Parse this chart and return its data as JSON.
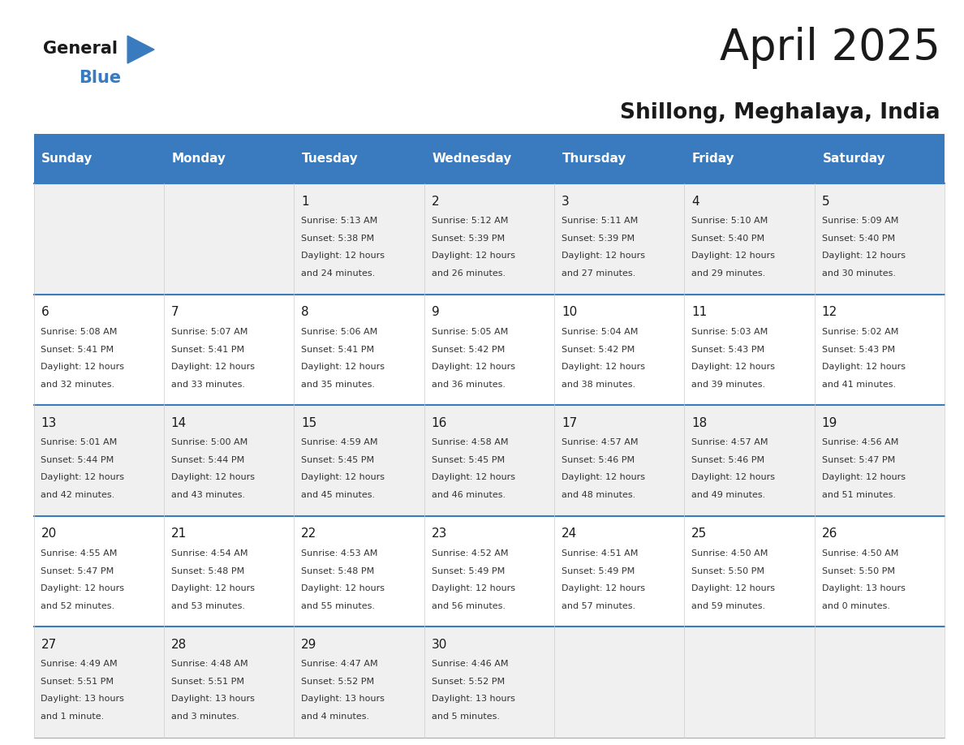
{
  "title": "April 2025",
  "subtitle": "Shillong, Meghalaya, India",
  "header_color": "#3a7bbf",
  "header_text_color": "#ffffff",
  "day_names": [
    "Sunday",
    "Monday",
    "Tuesday",
    "Wednesday",
    "Thursday",
    "Friday",
    "Saturday"
  ],
  "border_color": "#3a7bbf",
  "text_color": "#333333",
  "days": [
    {
      "day": 1,
      "col": 2,
      "row": 0,
      "sunrise": "5:13 AM",
      "sunset": "5:38 PM",
      "daylight": "12 hours and 24 minutes."
    },
    {
      "day": 2,
      "col": 3,
      "row": 0,
      "sunrise": "5:12 AM",
      "sunset": "5:39 PM",
      "daylight": "12 hours and 26 minutes."
    },
    {
      "day": 3,
      "col": 4,
      "row": 0,
      "sunrise": "5:11 AM",
      "sunset": "5:39 PM",
      "daylight": "12 hours and 27 minutes."
    },
    {
      "day": 4,
      "col": 5,
      "row": 0,
      "sunrise": "5:10 AM",
      "sunset": "5:40 PM",
      "daylight": "12 hours and 29 minutes."
    },
    {
      "day": 5,
      "col": 6,
      "row": 0,
      "sunrise": "5:09 AM",
      "sunset": "5:40 PM",
      "daylight": "12 hours and 30 minutes."
    },
    {
      "day": 6,
      "col": 0,
      "row": 1,
      "sunrise": "5:08 AM",
      "sunset": "5:41 PM",
      "daylight": "12 hours and 32 minutes."
    },
    {
      "day": 7,
      "col": 1,
      "row": 1,
      "sunrise": "5:07 AM",
      "sunset": "5:41 PM",
      "daylight": "12 hours and 33 minutes."
    },
    {
      "day": 8,
      "col": 2,
      "row": 1,
      "sunrise": "5:06 AM",
      "sunset": "5:41 PM",
      "daylight": "12 hours and 35 minutes."
    },
    {
      "day": 9,
      "col": 3,
      "row": 1,
      "sunrise": "5:05 AM",
      "sunset": "5:42 PM",
      "daylight": "12 hours and 36 minutes."
    },
    {
      "day": 10,
      "col": 4,
      "row": 1,
      "sunrise": "5:04 AM",
      "sunset": "5:42 PM",
      "daylight": "12 hours and 38 minutes."
    },
    {
      "day": 11,
      "col": 5,
      "row": 1,
      "sunrise": "5:03 AM",
      "sunset": "5:43 PM",
      "daylight": "12 hours and 39 minutes."
    },
    {
      "day": 12,
      "col": 6,
      "row": 1,
      "sunrise": "5:02 AM",
      "sunset": "5:43 PM",
      "daylight": "12 hours and 41 minutes."
    },
    {
      "day": 13,
      "col": 0,
      "row": 2,
      "sunrise": "5:01 AM",
      "sunset": "5:44 PM",
      "daylight": "12 hours and 42 minutes."
    },
    {
      "day": 14,
      "col": 1,
      "row": 2,
      "sunrise": "5:00 AM",
      "sunset": "5:44 PM",
      "daylight": "12 hours and 43 minutes."
    },
    {
      "day": 15,
      "col": 2,
      "row": 2,
      "sunrise": "4:59 AM",
      "sunset": "5:45 PM",
      "daylight": "12 hours and 45 minutes."
    },
    {
      "day": 16,
      "col": 3,
      "row": 2,
      "sunrise": "4:58 AM",
      "sunset": "5:45 PM",
      "daylight": "12 hours and 46 minutes."
    },
    {
      "day": 17,
      "col": 4,
      "row": 2,
      "sunrise": "4:57 AM",
      "sunset": "5:46 PM",
      "daylight": "12 hours and 48 minutes."
    },
    {
      "day": 18,
      "col": 5,
      "row": 2,
      "sunrise": "4:57 AM",
      "sunset": "5:46 PM",
      "daylight": "12 hours and 49 minutes."
    },
    {
      "day": 19,
      "col": 6,
      "row": 2,
      "sunrise": "4:56 AM",
      "sunset": "5:47 PM",
      "daylight": "12 hours and 51 minutes."
    },
    {
      "day": 20,
      "col": 0,
      "row": 3,
      "sunrise": "4:55 AM",
      "sunset": "5:47 PM",
      "daylight": "12 hours and 52 minutes."
    },
    {
      "day": 21,
      "col": 1,
      "row": 3,
      "sunrise": "4:54 AM",
      "sunset": "5:48 PM",
      "daylight": "12 hours and 53 minutes."
    },
    {
      "day": 22,
      "col": 2,
      "row": 3,
      "sunrise": "4:53 AM",
      "sunset": "5:48 PM",
      "daylight": "12 hours and 55 minutes."
    },
    {
      "day": 23,
      "col": 3,
      "row": 3,
      "sunrise": "4:52 AM",
      "sunset": "5:49 PM",
      "daylight": "12 hours and 56 minutes."
    },
    {
      "day": 24,
      "col": 4,
      "row": 3,
      "sunrise": "4:51 AM",
      "sunset": "5:49 PM",
      "daylight": "12 hours and 57 minutes."
    },
    {
      "day": 25,
      "col": 5,
      "row": 3,
      "sunrise": "4:50 AM",
      "sunset": "5:50 PM",
      "daylight": "12 hours and 59 minutes."
    },
    {
      "day": 26,
      "col": 6,
      "row": 3,
      "sunrise": "4:50 AM",
      "sunset": "5:50 PM",
      "daylight": "13 hours and 0 minutes."
    },
    {
      "day": 27,
      "col": 0,
      "row": 4,
      "sunrise": "4:49 AM",
      "sunset": "5:51 PM",
      "daylight": "13 hours and 1 minute."
    },
    {
      "day": 28,
      "col": 1,
      "row": 4,
      "sunrise": "4:48 AM",
      "sunset": "5:51 PM",
      "daylight": "13 hours and 3 minutes."
    },
    {
      "day": 29,
      "col": 2,
      "row": 4,
      "sunrise": "4:47 AM",
      "sunset": "5:52 PM",
      "daylight": "13 hours and 4 minutes."
    },
    {
      "day": 30,
      "col": 3,
      "row": 4,
      "sunrise": "4:46 AM",
      "sunset": "5:52 PM",
      "daylight": "13 hours and 5 minutes."
    }
  ]
}
